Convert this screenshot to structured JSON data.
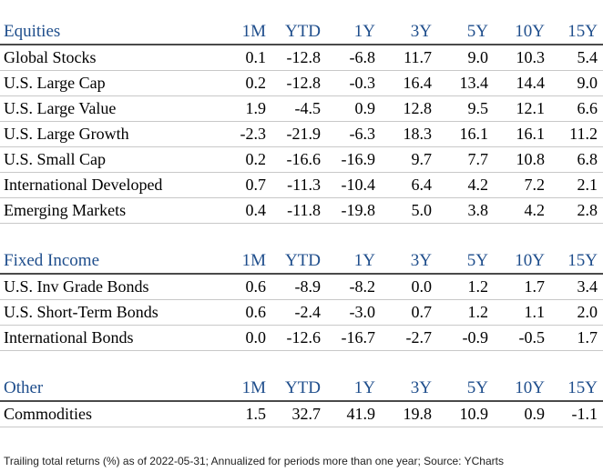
{
  "columns": [
    "1M",
    "YTD",
    "1Y",
    "3Y",
    "5Y",
    "10Y",
    "15Y"
  ],
  "equities": {
    "title": "Equities",
    "rows": [
      {
        "name": "Global Stocks",
        "values": [
          "0.1",
          "-12.8",
          "-6.8",
          "11.7",
          "9.0",
          "10.3",
          "5.4"
        ]
      },
      {
        "name": "U.S. Large Cap",
        "values": [
          "0.2",
          "-12.8",
          "-0.3",
          "16.4",
          "13.4",
          "14.4",
          "9.0"
        ]
      },
      {
        "name": "U.S. Large Value",
        "values": [
          "1.9",
          "-4.5",
          "0.9",
          "12.8",
          "9.5",
          "12.1",
          "6.6"
        ]
      },
      {
        "name": "U.S. Large Growth",
        "values": [
          "-2.3",
          "-21.9",
          "-6.3",
          "18.3",
          "16.1",
          "16.1",
          "11.2"
        ]
      },
      {
        "name": "U.S. Small Cap",
        "values": [
          "0.2",
          "-16.6",
          "-16.9",
          "9.7",
          "7.7",
          "10.8",
          "6.8"
        ]
      },
      {
        "name": "International Developed",
        "values": [
          "0.7",
          "-11.3",
          "-10.4",
          "6.4",
          "4.2",
          "7.2",
          "2.1"
        ]
      },
      {
        "name": "Emerging Markets",
        "values": [
          "0.4",
          "-11.8",
          "-19.8",
          "5.0",
          "3.8",
          "4.2",
          "2.8"
        ]
      }
    ]
  },
  "fixed_income": {
    "title": "Fixed Income",
    "rows": [
      {
        "name": "U.S. Inv Grade Bonds",
        "values": [
          "0.6",
          "-8.9",
          "-8.2",
          "0.0",
          "1.2",
          "1.7",
          "3.4"
        ]
      },
      {
        "name": "U.S. Short-Term Bonds",
        "values": [
          "0.6",
          "-2.4",
          "-3.0",
          "0.7",
          "1.2",
          "1.1",
          "2.0"
        ]
      },
      {
        "name": "International Bonds",
        "values": [
          "0.0",
          "-12.6",
          "-16.7",
          "-2.7",
          "-0.9",
          "-0.5",
          "1.7"
        ]
      }
    ]
  },
  "other": {
    "title": "Other",
    "rows": [
      {
        "name": "Commodities",
        "values": [
          "1.5",
          "32.7",
          "41.9",
          "19.8",
          "10.9",
          "0.9",
          "-1.1"
        ]
      }
    ]
  },
  "footer": "Trailing total returns (%) as of 2022-05-31; Annualized for periods more than one year; Source: YCharts",
  "colors": {
    "header_text": "#1f4e8c",
    "rule": "#4a4a4a",
    "row_rule": "#c8c8c8"
  }
}
